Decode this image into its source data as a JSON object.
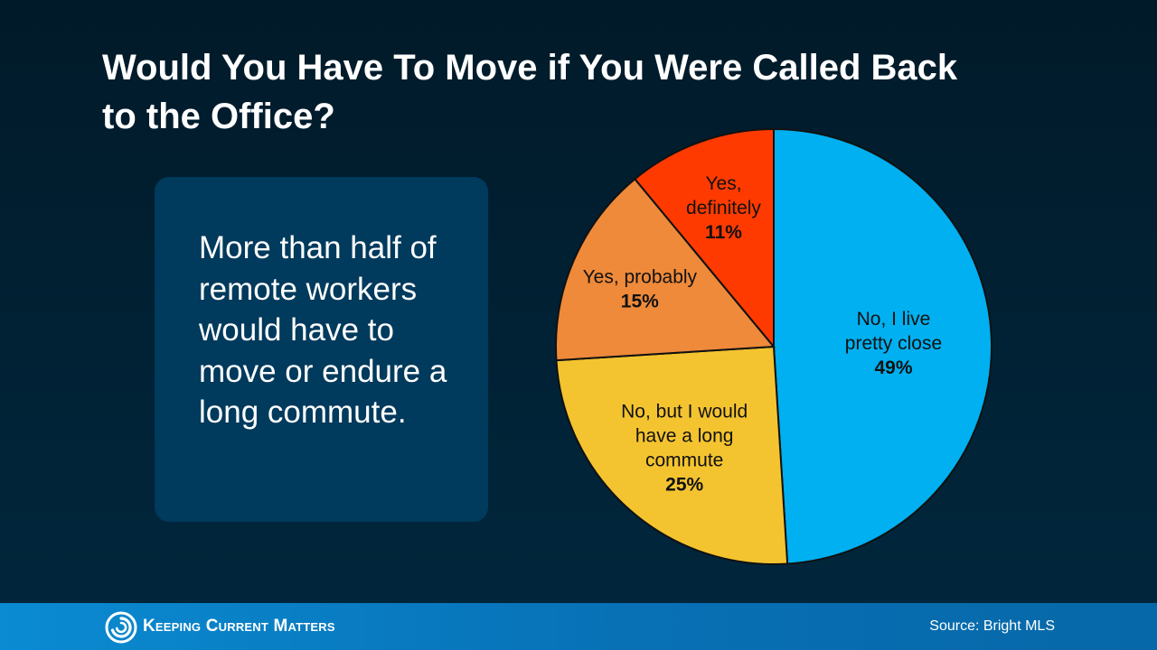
{
  "title": "Would You Have To Move if You Were Called Back to the Office?",
  "callout": {
    "text": "More than half of remote workers would have to move or endure a long commute."
  },
  "chart_data": {
    "type": "pie",
    "start_angle_deg": 0,
    "direction": "clockwise",
    "slices": [
      {
        "label": [
          "No, I live",
          "pretty close"
        ],
        "value": 49,
        "value_label": "49%",
        "color": "#00b0f0"
      },
      {
        "label": [
          "No, but I would",
          "have a long",
          "commute"
        ],
        "value": 25,
        "value_label": "25%",
        "color": "#f4c430"
      },
      {
        "label": [
          "Yes, probably"
        ],
        "value": 15,
        "value_label": "15%",
        "color": "#ee8a3a"
      },
      {
        "label": [
          "Yes,",
          "definitely"
        ],
        "value": 11,
        "value_label": "11%",
        "color": "#ff3a00"
      }
    ]
  },
  "footer": {
    "logo_text": "Keeping Current Matters",
    "source": "Source: Bright MLS"
  }
}
